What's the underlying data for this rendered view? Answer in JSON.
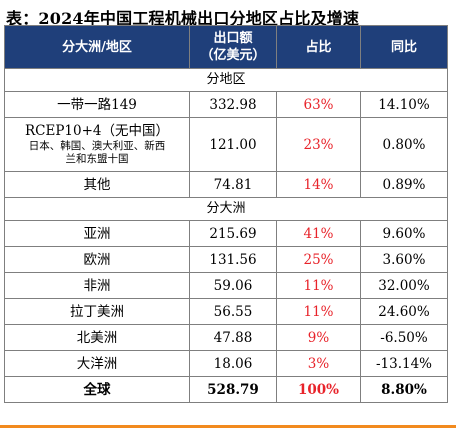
{
  "title": "表：2024年中国工程机械出口分地区占比及增速",
  "headers": {
    "region": "分大洲/地区",
    "export_line1": "出口额",
    "export_line2": "（亿美元）",
    "share": "占比",
    "yoy": "同比"
  },
  "sections": {
    "by_region": "分地区",
    "by_continent": "分大洲"
  },
  "region_rows": [
    {
      "name": "一带一路149",
      "export": "332.98",
      "share": "63%",
      "yoy": "14.10%"
    },
    {
      "name": "RCEP10+4（无中国）",
      "sub_line1": "日本、韩国、澳大利亚、新西",
      "sub_line2": "兰和东盟十国",
      "export": "121.00",
      "share": "23%",
      "yoy": "0.80%"
    },
    {
      "name": "其他",
      "export": "74.81",
      "share": "14%",
      "yoy": "0.89%"
    }
  ],
  "continent_rows": [
    {
      "name": "亚洲",
      "export": "215.69",
      "share": "41%",
      "yoy": "9.60%"
    },
    {
      "name": "欧洲",
      "export": "131.56",
      "share": "25%",
      "yoy": "3.60%"
    },
    {
      "name": "非洲",
      "export": "59.06",
      "share": "11%",
      "yoy": "32.00%"
    },
    {
      "name": "拉丁美洲",
      "export": "56.55",
      "share": "11%",
      "yoy": "24.60%"
    },
    {
      "name": "北美洲",
      "export": "47.88",
      "share": "9%",
      "yoy": "-6.50%"
    },
    {
      "name": "大洋洲",
      "export": "18.06",
      "share": "3%",
      "yoy": "-13.14%"
    }
  ],
  "total": {
    "name": "全球",
    "export": "528.79",
    "share": "100%",
    "yoy": "8.80%"
  },
  "colors": {
    "header_bg": "#1f3f7a",
    "share_text": "#e8232a",
    "bottom_bar": "#f28a1e"
  }
}
